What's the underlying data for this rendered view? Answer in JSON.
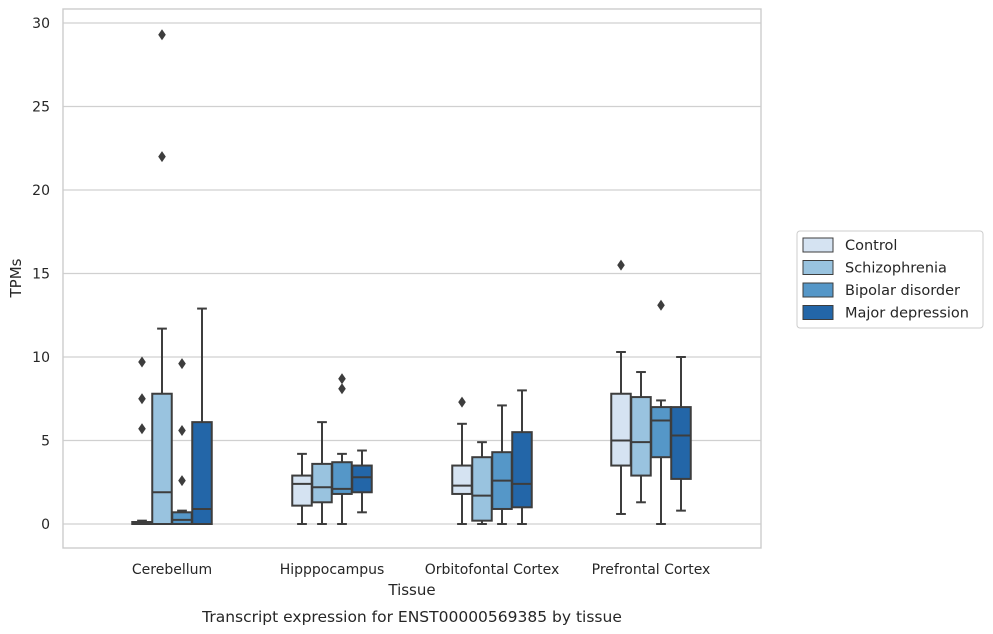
{
  "chart_data": {
    "type": "box",
    "xlabel": "Tissue",
    "ylabel": "TPMs",
    "caption": "Transcript expression for ENST00000569385 by tissue",
    "ylim": [
      -1.4,
      30.8
    ],
    "yticks": [
      0,
      5,
      10,
      15,
      20,
      25,
      30
    ],
    "grid": "horizontal",
    "legend_position": "right",
    "categories": [
      "Cerebellum",
      "Hipppocampus",
      "Orbitofontal Cortex",
      "Prefrontal Cortex"
    ],
    "series": [
      {
        "name": "Control",
        "color": "#d5e3f2",
        "boxes": [
          {
            "whisker_low": 0.0,
            "q1": 0.0,
            "median": 0.05,
            "q3": 0.12,
            "whisker_high": 0.2,
            "outliers": [
              9.7,
              7.5,
              5.7
            ]
          },
          {
            "whisker_low": 0.0,
            "q1": 1.1,
            "median": 2.4,
            "q3": 2.9,
            "whisker_high": 4.2,
            "outliers": []
          },
          {
            "whisker_low": 0.0,
            "q1": 1.8,
            "median": 2.3,
            "q3": 3.5,
            "whisker_high": 6.0,
            "outliers": [
              7.3
            ]
          },
          {
            "whisker_low": 0.6,
            "q1": 3.5,
            "median": 5.0,
            "q3": 7.8,
            "whisker_high": 10.3,
            "outliers": [
              15.5
            ]
          }
        ]
      },
      {
        "name": "Schizophrenia",
        "color": "#99c3df",
        "boxes": [
          {
            "whisker_low": 0.0,
            "q1": 0.0,
            "median": 1.9,
            "q3": 7.8,
            "whisker_high": 11.7,
            "outliers": [
              29.3,
              22.0
            ]
          },
          {
            "whisker_low": 0.0,
            "q1": 1.3,
            "median": 2.2,
            "q3": 3.6,
            "whisker_high": 6.1,
            "outliers": []
          },
          {
            "whisker_low": 0.0,
            "q1": 0.2,
            "median": 1.7,
            "q3": 4.0,
            "whisker_high": 4.9,
            "outliers": []
          },
          {
            "whisker_low": 1.3,
            "q1": 2.9,
            "median": 4.9,
            "q3": 7.6,
            "whisker_high": 9.1,
            "outliers": []
          }
        ]
      },
      {
        "name": "Bipolar disorder",
        "color": "#5597c8",
        "boxes": [
          {
            "whisker_low": 0.0,
            "q1": 0.0,
            "median": 0.25,
            "q3": 0.7,
            "whisker_high": 0.8,
            "outliers": [
              9.6,
              5.6,
              2.6
            ]
          },
          {
            "whisker_low": 0.0,
            "q1": 1.8,
            "median": 2.1,
            "q3": 3.7,
            "whisker_high": 4.2,
            "outliers": [
              8.7,
              8.1
            ]
          },
          {
            "whisker_low": 0.0,
            "q1": 0.9,
            "median": 2.6,
            "q3": 4.3,
            "whisker_high": 7.1,
            "outliers": []
          },
          {
            "whisker_low": 0.0,
            "q1": 4.0,
            "median": 6.2,
            "q3": 7.0,
            "whisker_high": 7.4,
            "outliers": [
              13.1
            ]
          }
        ]
      },
      {
        "name": "Major depression",
        "color": "#2366a8",
        "boxes": [
          {
            "whisker_low": 0.0,
            "q1": 0.0,
            "median": 0.9,
            "q3": 6.1,
            "whisker_high": 12.9,
            "outliers": []
          },
          {
            "whisker_low": 0.7,
            "q1": 1.9,
            "median": 2.8,
            "q3": 3.5,
            "whisker_high": 4.4,
            "outliers": []
          },
          {
            "whisker_low": 0.0,
            "q1": 1.0,
            "median": 2.4,
            "q3": 5.5,
            "whisker_high": 8.0,
            "outliers": []
          },
          {
            "whisker_low": 0.8,
            "q1": 2.7,
            "median": 5.3,
            "q3": 7.0,
            "whisker_high": 10.0,
            "outliers": []
          }
        ]
      }
    ]
  }
}
